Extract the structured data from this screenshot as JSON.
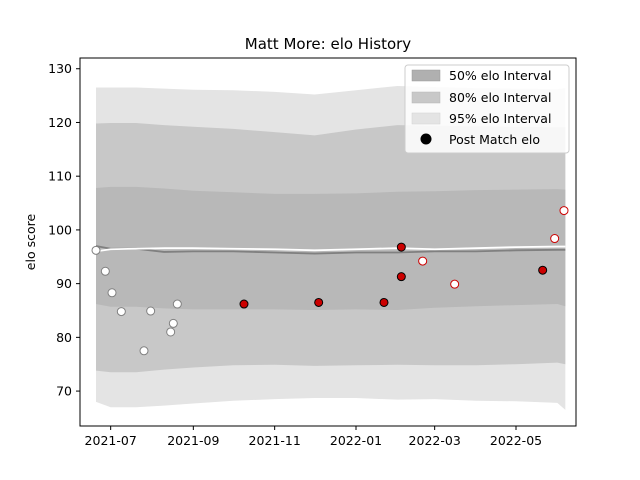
{
  "chart_data": {
    "type": "scatter",
    "title": "Matt More: elo History",
    "xlabel": "",
    "ylabel": "elo score",
    "xlim": [
      "2021-06-08",
      "2022-06-15"
    ],
    "ylim": [
      63.5,
      132
    ],
    "x_ticks": [
      "2021-07",
      "2021-09",
      "2021-11",
      "2022-01",
      "2022-03",
      "2022-05"
    ],
    "y_ticks": [
      70,
      80,
      90,
      100,
      110,
      120,
      130
    ],
    "grid": false,
    "legend_position": "top-right",
    "legend": [
      {
        "label": "50% elo Interval",
        "kind": "band",
        "color": "#b0b0b0"
      },
      {
        "label": "80% elo Interval",
        "kind": "band",
        "color": "#c8c8c8"
      },
      {
        "label": "95% elo Interval",
        "kind": "band",
        "color": "#e4e4e4"
      },
      {
        "label": "Post Match elo",
        "kind": "marker",
        "color": "#000000"
      }
    ],
    "colors": {
      "band_50": "#b0b0b0",
      "band_80": "#c8c8c8",
      "band_95": "#e4e4e4",
      "mean_line": "#808080",
      "median_line": "#ffffff",
      "point_red": "#cc0000",
      "point_grey": "#cccccc"
    },
    "band_x": [
      "2021-06-20",
      "2021-07-01",
      "2021-07-20",
      "2021-08-10",
      "2021-09-01",
      "2021-10-01",
      "2021-11-01",
      "2021-12-01",
      "2022-01-01",
      "2022-02-01",
      "2022-03-01",
      "2022-04-01",
      "2022-05-01",
      "2022-06-01",
      "2022-06-07"
    ],
    "band_95_upper": [
      126.5,
      126.5,
      126.5,
      126.3,
      126.1,
      126.0,
      125.7,
      125.2,
      126.0,
      126.8,
      126.6,
      126.4,
      126.3,
      126.2,
      126.4
    ],
    "band_95_lower": [
      68.0,
      67.0,
      67.0,
      67.3,
      67.7,
      68.2,
      68.5,
      68.7,
      68.7,
      68.4,
      68.5,
      68.2,
      68.1,
      67.8,
      66.5
    ],
    "band_80_upper": [
      119.8,
      119.9,
      119.9,
      119.5,
      119.2,
      118.8,
      118.2,
      117.6,
      118.7,
      119.5,
      119.4,
      119.3,
      119.2,
      119.1,
      119.1
    ],
    "band_80_lower": [
      73.8,
      73.5,
      73.5,
      74.0,
      74.4,
      74.8,
      74.9,
      74.7,
      74.8,
      74.9,
      74.8,
      74.8,
      75.0,
      75.3,
      75.0
    ],
    "band_50_upper": [
      107.8,
      108.0,
      108.0,
      107.7,
      107.3,
      107.0,
      106.7,
      106.7,
      106.8,
      107.1,
      107.2,
      107.4,
      107.5,
      107.6,
      107.5
    ],
    "band_50_lower": [
      86.2,
      85.7,
      85.7,
      85.4,
      85.2,
      85.2,
      85.2,
      85.1,
      85.2,
      85.1,
      85.5,
      85.8,
      86.0,
      86.2,
      85.8
    ],
    "mean_line": [
      97.0,
      96.5,
      96.5,
      95.9,
      96.0,
      96.0,
      95.8,
      95.6,
      95.8,
      95.8,
      96.0,
      96.0,
      96.2,
      96.3,
      96.3
    ],
    "median_line": [
      96.0,
      96.4,
      96.5,
      96.6,
      96.6,
      96.5,
      96.4,
      96.2,
      96.4,
      96.6,
      96.4,
      96.6,
      96.8,
      96.9,
      96.9
    ],
    "points": [
      {
        "x": "2021-06-20",
        "y": 96.2,
        "style": "grey-open"
      },
      {
        "x": "2021-06-27",
        "y": 92.3,
        "style": "grey-open"
      },
      {
        "x": "2021-07-02",
        "y": 88.3,
        "style": "grey-open"
      },
      {
        "x": "2021-07-09",
        "y": 84.8,
        "style": "grey-open"
      },
      {
        "x": "2021-07-26",
        "y": 77.5,
        "style": "grey-open"
      },
      {
        "x": "2021-07-31",
        "y": 84.9,
        "style": "grey-open"
      },
      {
        "x": "2021-08-15",
        "y": 81.0,
        "style": "grey-open"
      },
      {
        "x": "2021-08-17",
        "y": 82.6,
        "style": "grey-open"
      },
      {
        "x": "2021-08-20",
        "y": 86.2,
        "style": "grey-open"
      },
      {
        "x": "2021-10-09",
        "y": 86.2,
        "style": "red-filled"
      },
      {
        "x": "2021-12-04",
        "y": 86.5,
        "style": "red-filled"
      },
      {
        "x": "2022-01-22",
        "y": 86.5,
        "style": "red-filled"
      },
      {
        "x": "2022-02-04",
        "y": 96.8,
        "style": "red-filled"
      },
      {
        "x": "2022-02-04",
        "y": 91.3,
        "style": "red-filled"
      },
      {
        "x": "2022-02-20",
        "y": 94.2,
        "style": "red-open"
      },
      {
        "x": "2022-03-16",
        "y": 89.9,
        "style": "red-open"
      },
      {
        "x": "2022-05-21",
        "y": 92.5,
        "style": "red-filled"
      },
      {
        "x": "2022-05-30",
        "y": 98.4,
        "style": "red-open"
      },
      {
        "x": "2022-06-06",
        "y": 103.6,
        "style": "red-open"
      }
    ]
  }
}
